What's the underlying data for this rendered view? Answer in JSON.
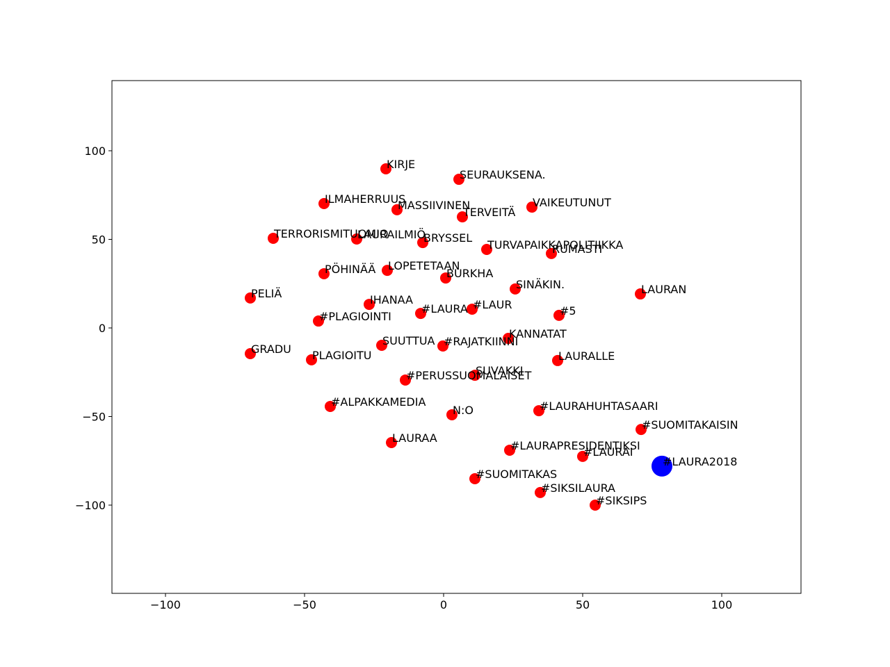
{
  "chart_data": {
    "type": "scatter",
    "xlim": [
      -119.25,
      128.5
    ],
    "ylim": [
      -149.8,
      139.6
    ],
    "xticks": [
      {
        "value": -100,
        "label": "−100"
      },
      {
        "value": -50,
        "label": "−50"
      },
      0,
      50,
      100
    ],
    "yticks": [
      {
        "value": -100,
        "label": "−100"
      },
      {
        "value": -50,
        "label": "−50"
      },
      0,
      50,
      100
    ],
    "series": [
      {
        "color": "#ff0000",
        "size": 8,
        "labels": [
          "KIRJE",
          "SEURAUKSENA.",
          "ILMAHERRUUS",
          "MASSIIVINEN",
          "TERVEITÄ",
          "VAIKEUTUNUT",
          "TERRORISMITUOMIO",
          "LAURAILMIÖ",
          "BRYSSEL",
          "TURVAPAIKKAPOLITIIKKA",
          "RUMASTI",
          "PÖHINÄÄ",
          "LOPETETAAN",
          "BURKHA",
          "SINÄKIN.",
          "LAURAN",
          "PELIÄ",
          "IHANAA",
          "#LAURA",
          "#LAUR",
          "#5",
          "#PLAGIOINTI",
          "KANNATAT",
          "SUUTTUA",
          "#RAJATKIINNI",
          "GRADU",
          "PLAGIOITU",
          "LAURALLE",
          "SUVAKKI",
          "#PERUSSUOMALAISET",
          "#ALPAKKAMEDIA",
          "N:O",
          "#LAURAHUHTASAARI",
          "#SUOMITAKAISIN",
          "LAURAA",
          "#LAURAPRESIDENTIKSI",
          "#LAURAI",
          "#SUOMITAKAS",
          "#SIKSILAURA",
          "#SIKSIPS"
        ],
        "x": [
          -20.75,
          5.5,
          -43,
          -16.75,
          6.75,
          31.75,
          -61.25,
          -31.25,
          -7.5,
          15.5,
          38.75,
          -43,
          -20.25,
          0.75,
          25.75,
          70.75,
          -69.5,
          -26.75,
          -8.25,
          10.25,
          41.5,
          -45,
          23.25,
          -22.25,
          -0.25,
          -69.5,
          -47.5,
          41,
          11.25,
          -13.75,
          -40.75,
          3,
          34.25,
          71,
          -18.75,
          23.75,
          50,
          11.25,
          34.75,
          54.5
        ],
        "y": [
          89.8,
          83.9,
          70.2,
          66.7,
          62.7,
          68.2,
          50.6,
          50.2,
          48.2,
          44.3,
          42.0,
          30.6,
          32.5,
          28.2,
          22.0,
          19.2,
          16.9,
          13.3,
          8.2,
          10.6,
          7.1,
          3.9,
          -5.9,
          -9.8,
          -10.2,
          -14.5,
          -18.0,
          -18.4,
          -26.7,
          -29.4,
          -44.3,
          -49.0,
          -46.7,
          -57.3,
          -64.7,
          -69.0,
          -72.5,
          -85.1,
          -92.9,
          -100.0
        ]
      },
      {
        "color": "#0000ff",
        "size": 15,
        "labels": [
          "#LAURA2018"
        ],
        "x": [
          78.5
        ],
        "y": [
          -78.0
        ]
      }
    ]
  }
}
